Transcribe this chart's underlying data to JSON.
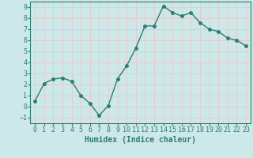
{
  "xlabel": "Humidex (Indice chaleur)",
  "x": [
    0,
    1,
    2,
    3,
    4,
    5,
    6,
    7,
    8,
    9,
    10,
    11,
    12,
    13,
    14,
    15,
    16,
    17,
    18,
    19,
    20,
    21,
    22,
    23
  ],
  "y": [
    0.5,
    2.1,
    2.5,
    2.6,
    2.3,
    1.0,
    0.3,
    -0.8,
    0.1,
    2.5,
    3.7,
    5.3,
    7.3,
    7.3,
    9.1,
    8.5,
    8.2,
    8.5,
    7.6,
    7.0,
    6.8,
    6.2,
    6.0,
    5.5
  ],
  "line_color": "#2e7d6e",
  "marker_size": 2.5,
  "bg_color": "#cce8e8",
  "grid_color": "#e8c8c8",
  "ylim": [
    -1.5,
    9.5
  ],
  "xlim": [
    -0.5,
    23.5
  ],
  "yticks": [
    -1,
    0,
    1,
    2,
    3,
    4,
    5,
    6,
    7,
    8,
    9
  ],
  "xticks": [
    0,
    1,
    2,
    3,
    4,
    5,
    6,
    7,
    8,
    9,
    10,
    11,
    12,
    13,
    14,
    15,
    16,
    17,
    18,
    19,
    20,
    21,
    22,
    23
  ],
  "tick_fontsize": 6,
  "label_fontsize": 7,
  "axis_color": "#2e7d6e",
  "spine_color": "#2e7d6e"
}
